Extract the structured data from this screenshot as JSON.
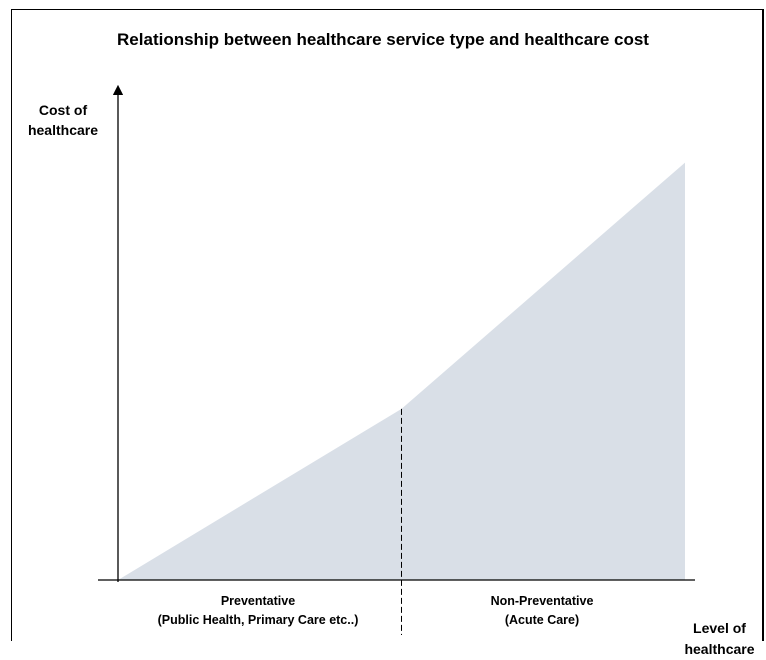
{
  "chart_data": {
    "type": "area",
    "title": "Relationship between healthcare service type and healthcare cost",
    "ylabel": [
      "Cost of",
      "healthcare"
    ],
    "xlabel": [
      "Level of",
      "healthcare"
    ],
    "categories": [
      [
        "Preventative",
        "(Public Health, Primary Care etc..)"
      ],
      [
        "Non-Preventative",
        "(Acute Care)"
      ]
    ],
    "x": [
      0,
      1,
      2
    ],
    "values": [
      0,
      0.41,
      1.0
    ],
    "xlim": [
      0,
      2
    ],
    "ylim": [
      0,
      1.15
    ],
    "divider_at": 1,
    "grid": false,
    "fill_color": "#d9dfe7",
    "axis_color": "#000000"
  }
}
